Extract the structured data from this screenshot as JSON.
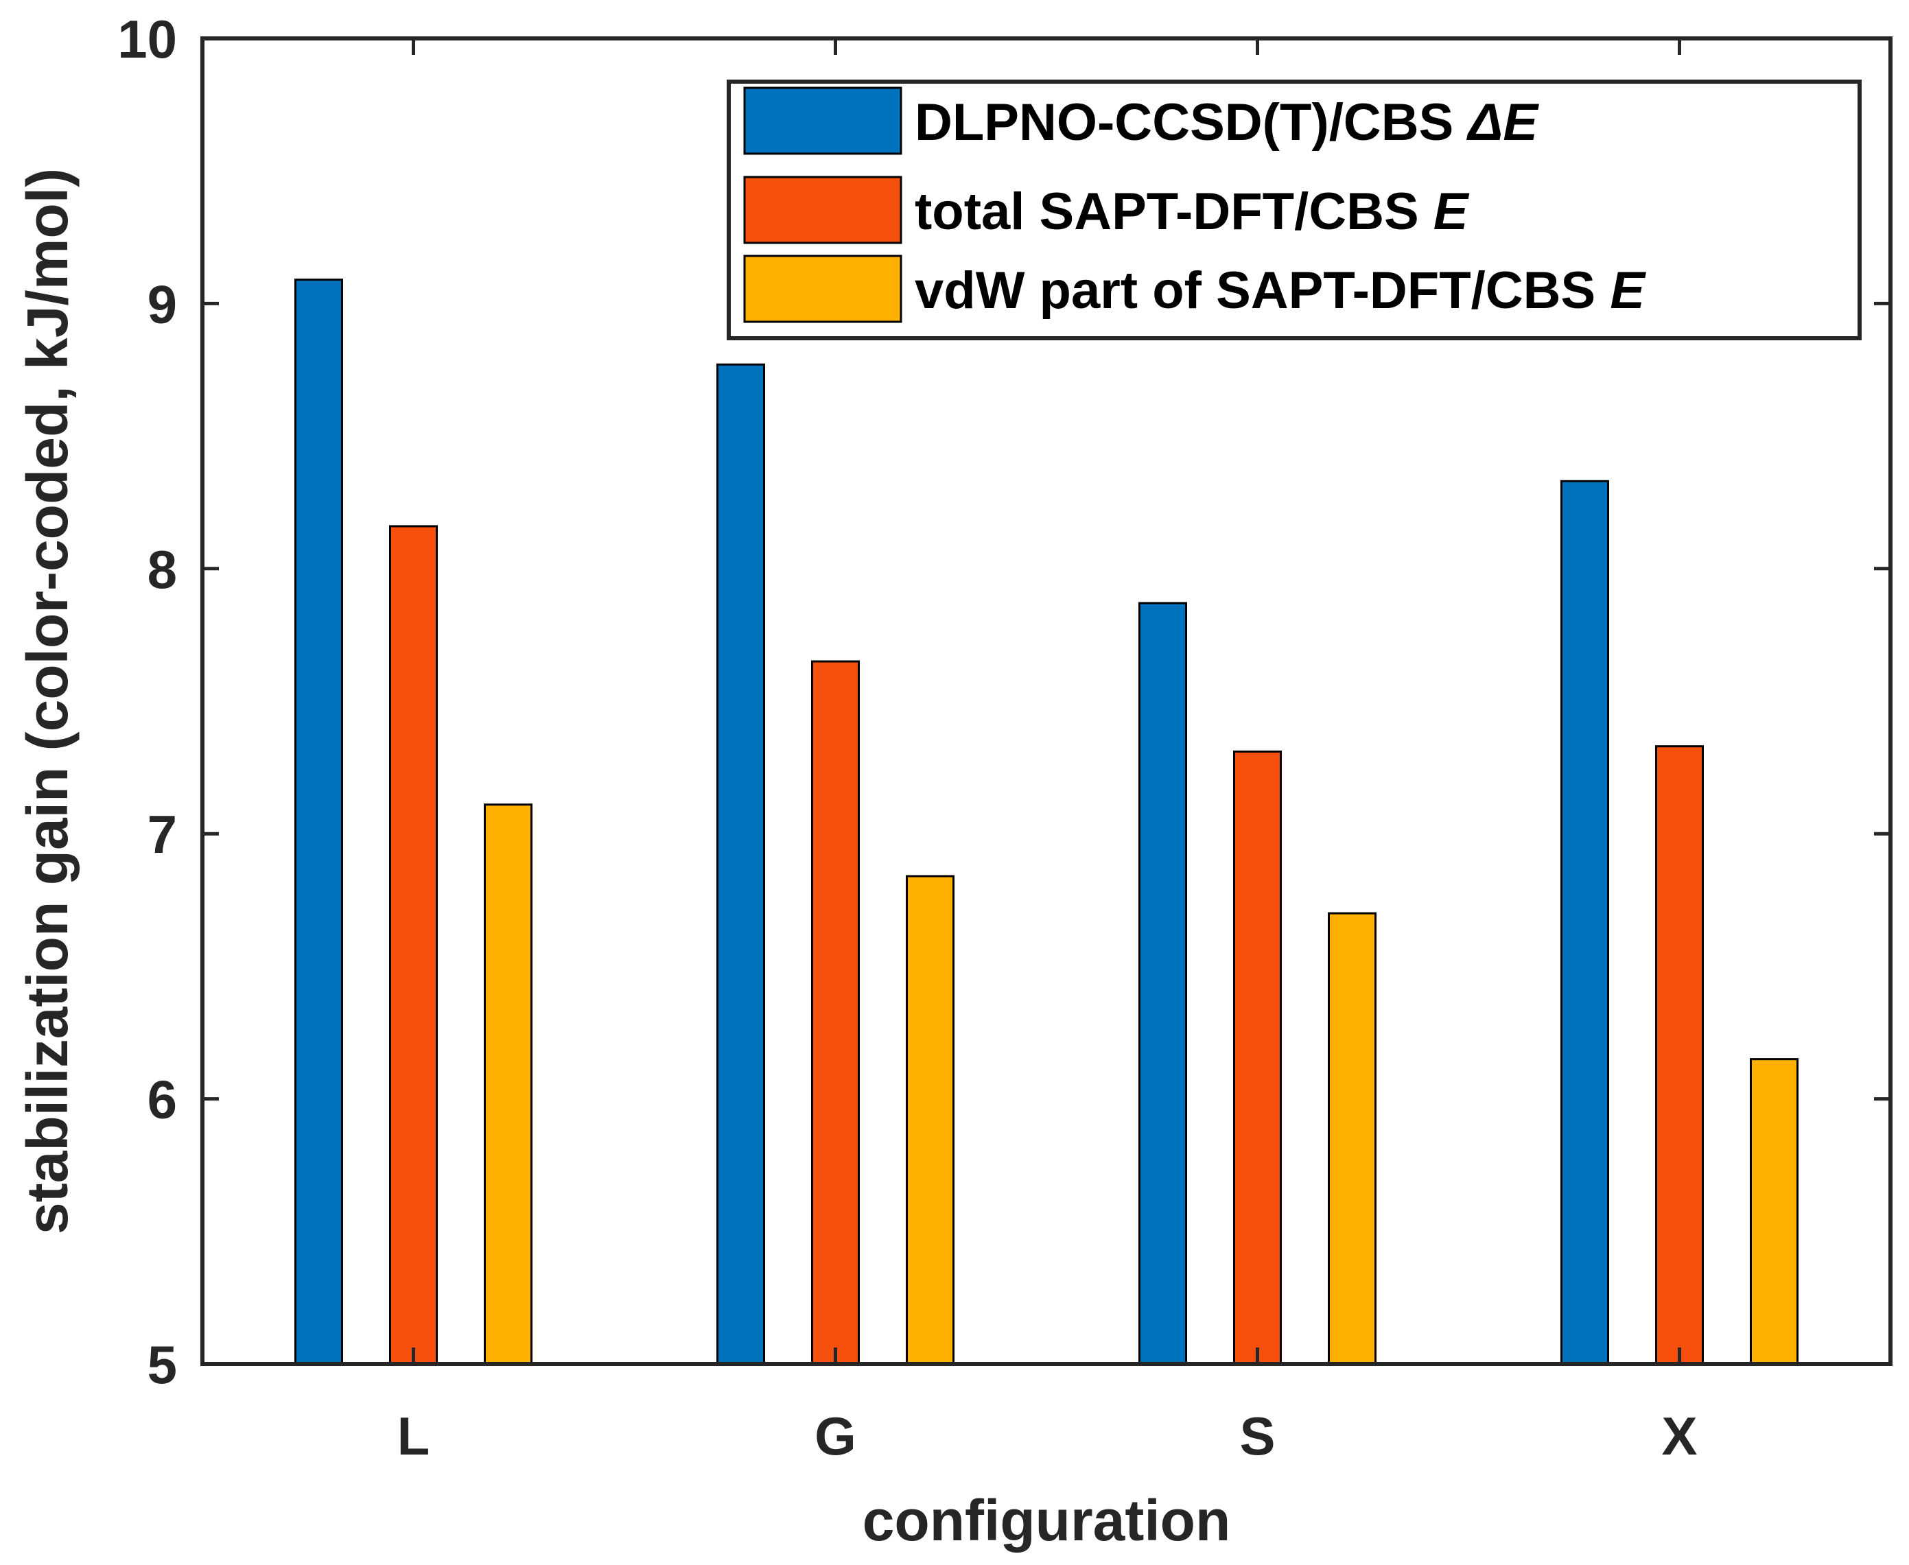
{
  "chart_data": {
    "type": "bar",
    "title": "",
    "xlabel": "configuration",
    "ylabel": "stabilization gain (color-coded, kJ/mol)",
    "categories": [
      "L",
      "G",
      "S",
      "X"
    ],
    "ylim": [
      5,
      10
    ],
    "yticks": [
      "5",
      "6",
      "7",
      "8",
      "9",
      "10"
    ],
    "legend_position": "top-right",
    "grid": false,
    "series": [
      {
        "name": "DLPNO-CCSD(T)/CBS ΔE",
        "label_text": "DLPNO-CCSD(T)/CBS ",
        "label_symbol": "ΔE",
        "color": "#0072BD",
        "values": [
          9.09,
          8.77,
          7.87,
          8.33
        ]
      },
      {
        "name": "total SAPT-DFT/CBS E",
        "label_text": "total SAPT-DFT/CBS ",
        "label_symbol": "E",
        "color": "#F7500C",
        "values": [
          8.16,
          7.65,
          7.31,
          7.33
        ]
      },
      {
        "name": "vdW part of SAPT-DFT/CBS E",
        "label_text": "vdW part of SAPT-DFT/CBS ",
        "label_symbol": "E",
        "color": "#FFB000",
        "values": [
          7.11,
          6.84,
          6.7,
          6.15
        ]
      }
    ]
  }
}
